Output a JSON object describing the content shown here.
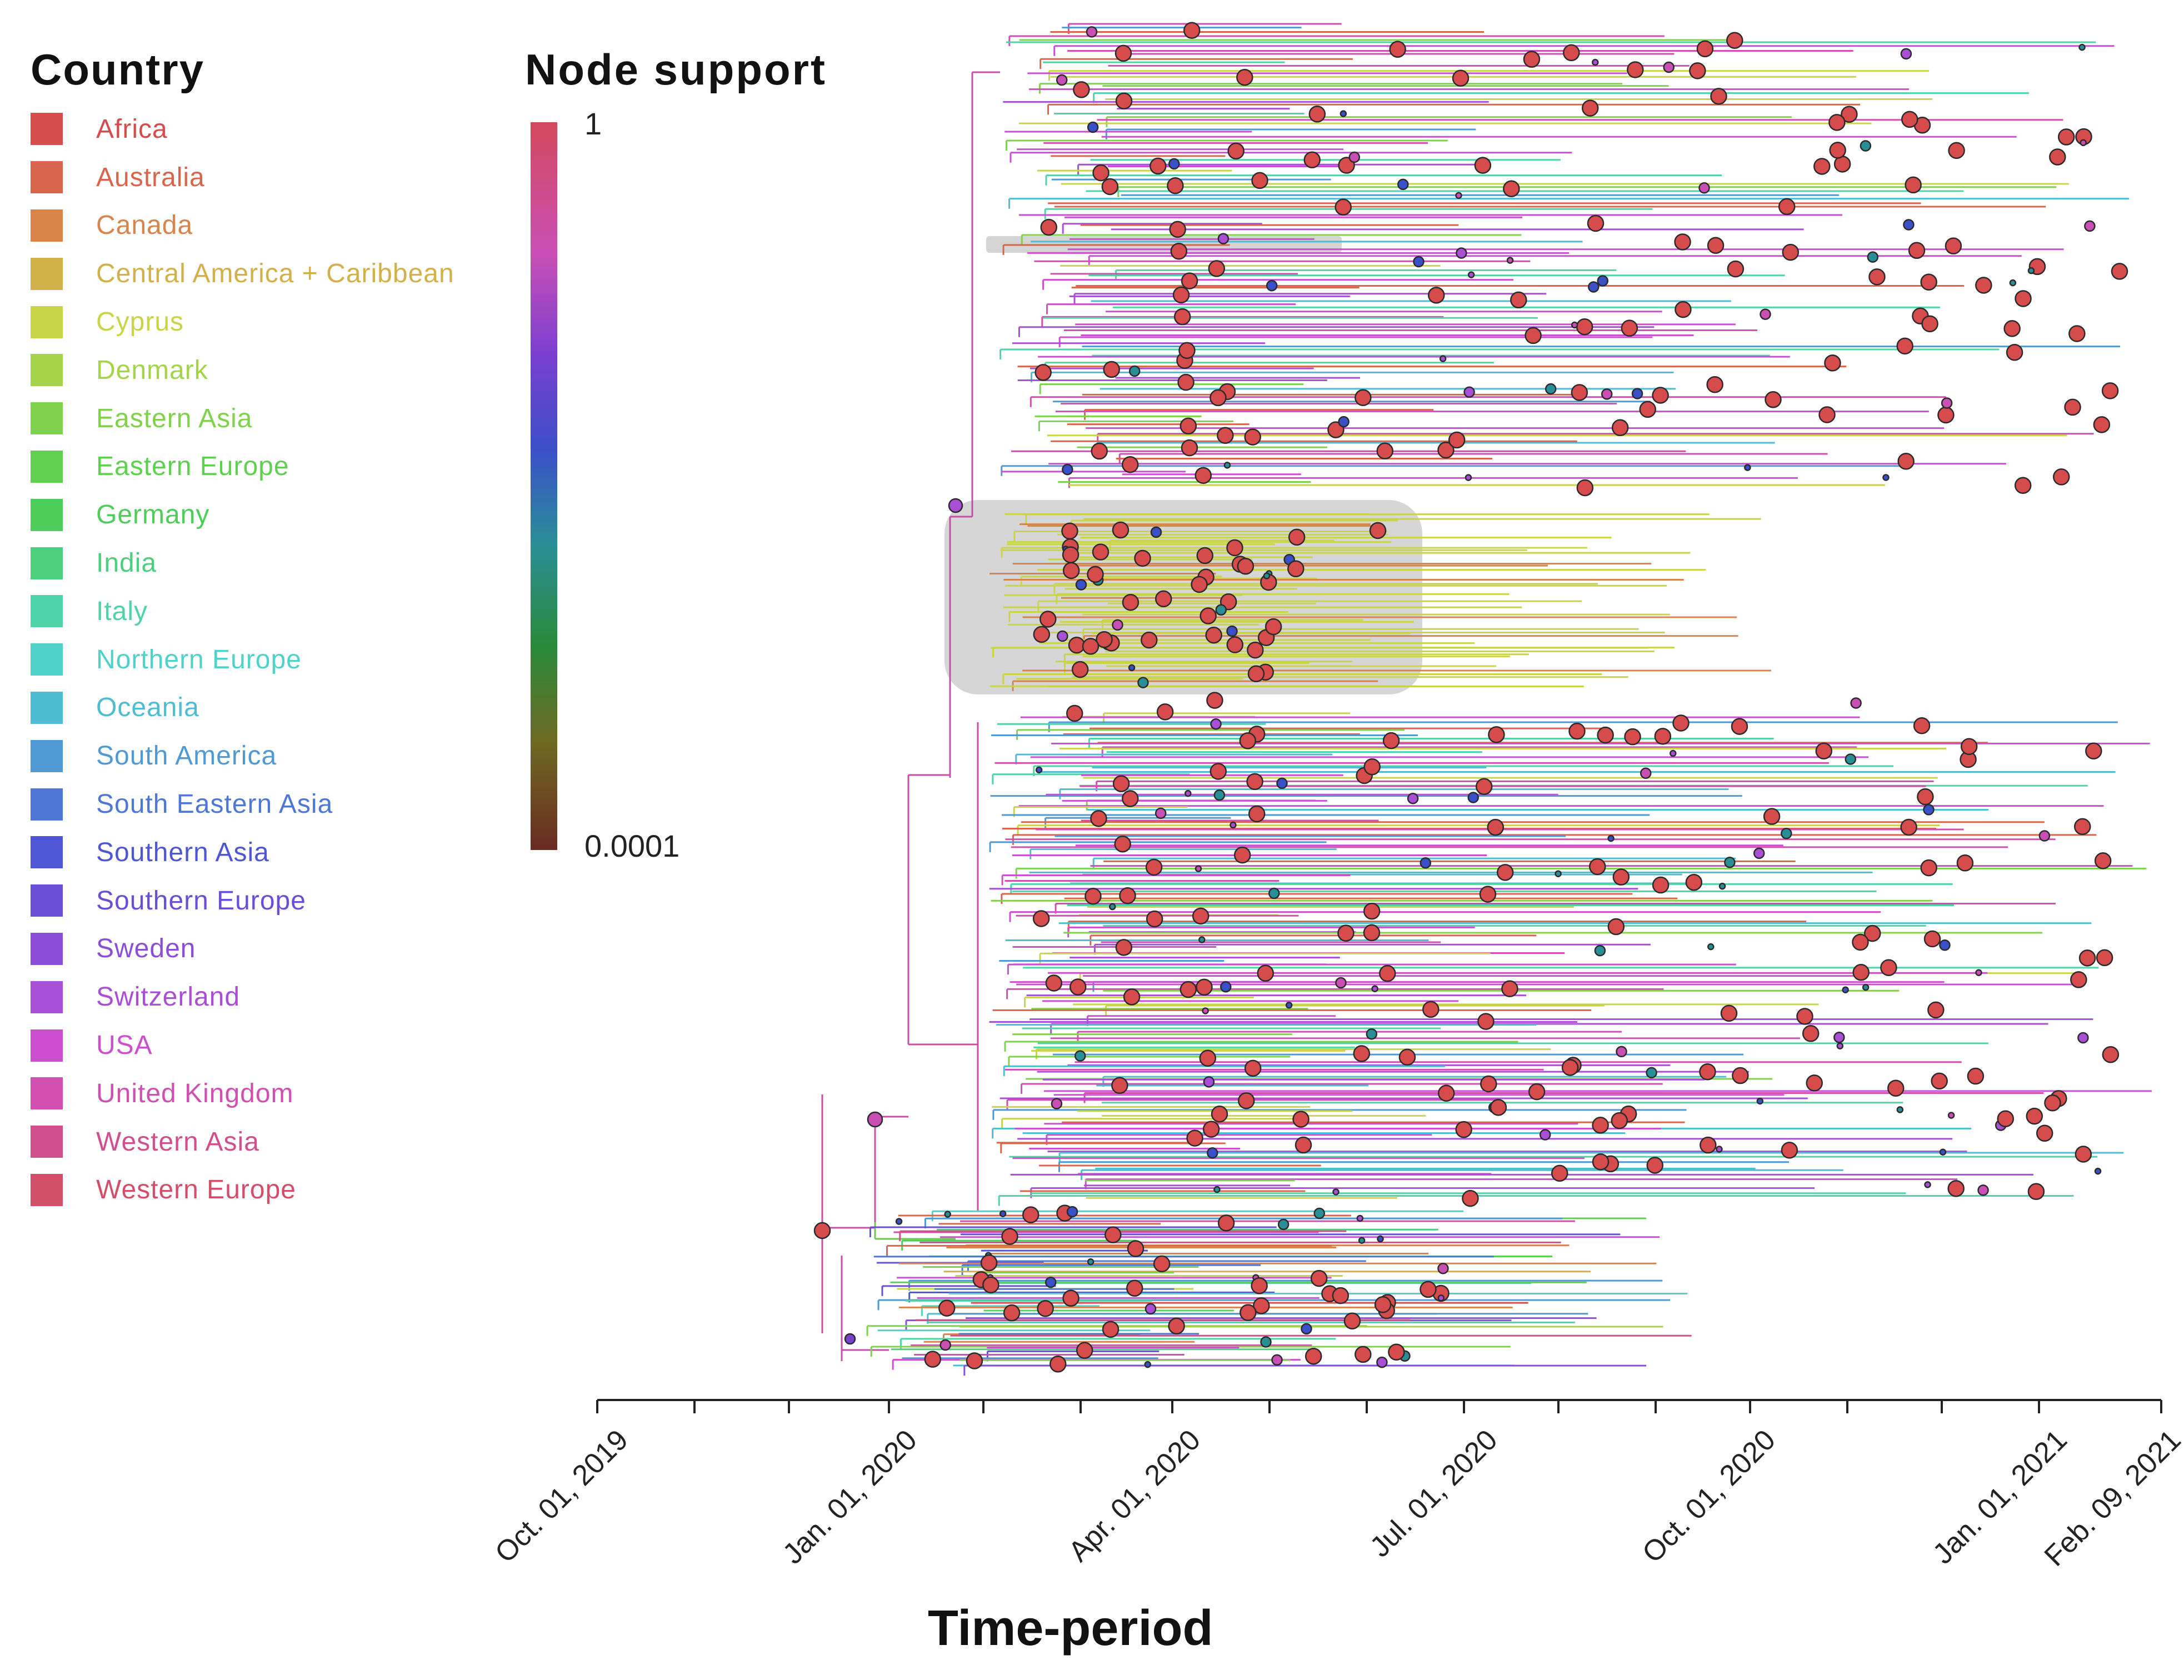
{
  "legend": {
    "title": "Country",
    "items": [
      {
        "label": "Africa",
        "color": "#d64b4b"
      },
      {
        "label": "Australia",
        "color": "#d9664c"
      },
      {
        "label": "Canada",
        "color": "#d8844b"
      },
      {
        "label": "Central America + Caribbean",
        "color": "#d2b04a"
      },
      {
        "label": "Cyprus",
        "color": "#c9d449"
      },
      {
        "label": "Denmark",
        "color": "#a5d44a"
      },
      {
        "label": "Eastern Asia",
        "color": "#80d24c"
      },
      {
        "label": "Eastern Europe",
        "color": "#5fd04f"
      },
      {
        "label": "Germany",
        "color": "#4fcd5a"
      },
      {
        "label": "India",
        "color": "#4dcf7e"
      },
      {
        "label": "Italy",
        "color": "#4fd3a8"
      },
      {
        "label": "Northern Europe",
        "color": "#4fd2c8"
      },
      {
        "label": "Oceania",
        "color": "#4dbdd3"
      },
      {
        "label": "South America",
        "color": "#4f9ad5"
      },
      {
        "label": "South Eastern Asia",
        "color": "#4f78d6"
      },
      {
        "label": "Southern Asia",
        "color": "#4f56d6"
      },
      {
        "label": "Southern Europe",
        "color": "#6a4fd6"
      },
      {
        "label": "Sweden",
        "color": "#8a4fd6"
      },
      {
        "label": "Switzerland",
        "color": "#a94fd5"
      },
      {
        "label": "USA",
        "color": "#cd4fd1"
      },
      {
        "label": "United Kingdom",
        "color": "#d24fb2"
      },
      {
        "label": "Western Asia",
        "color": "#d24f8d"
      },
      {
        "label": "Western Europe",
        "color": "#d24f6a"
      }
    ]
  },
  "node_support": {
    "title": "Node support",
    "max_label": "1",
    "min_label": "0.0001"
  },
  "x_axis": {
    "title": "Time-period",
    "ticks": [
      "Oct. 01, 2019",
      "Jan. 01, 2020",
      "Apr. 01, 2020",
      "Jul. 01, 2020",
      "Oct. 01, 2020",
      "Jan. 01, 2021",
      "Feb. 09, 2021"
    ]
  }
}
